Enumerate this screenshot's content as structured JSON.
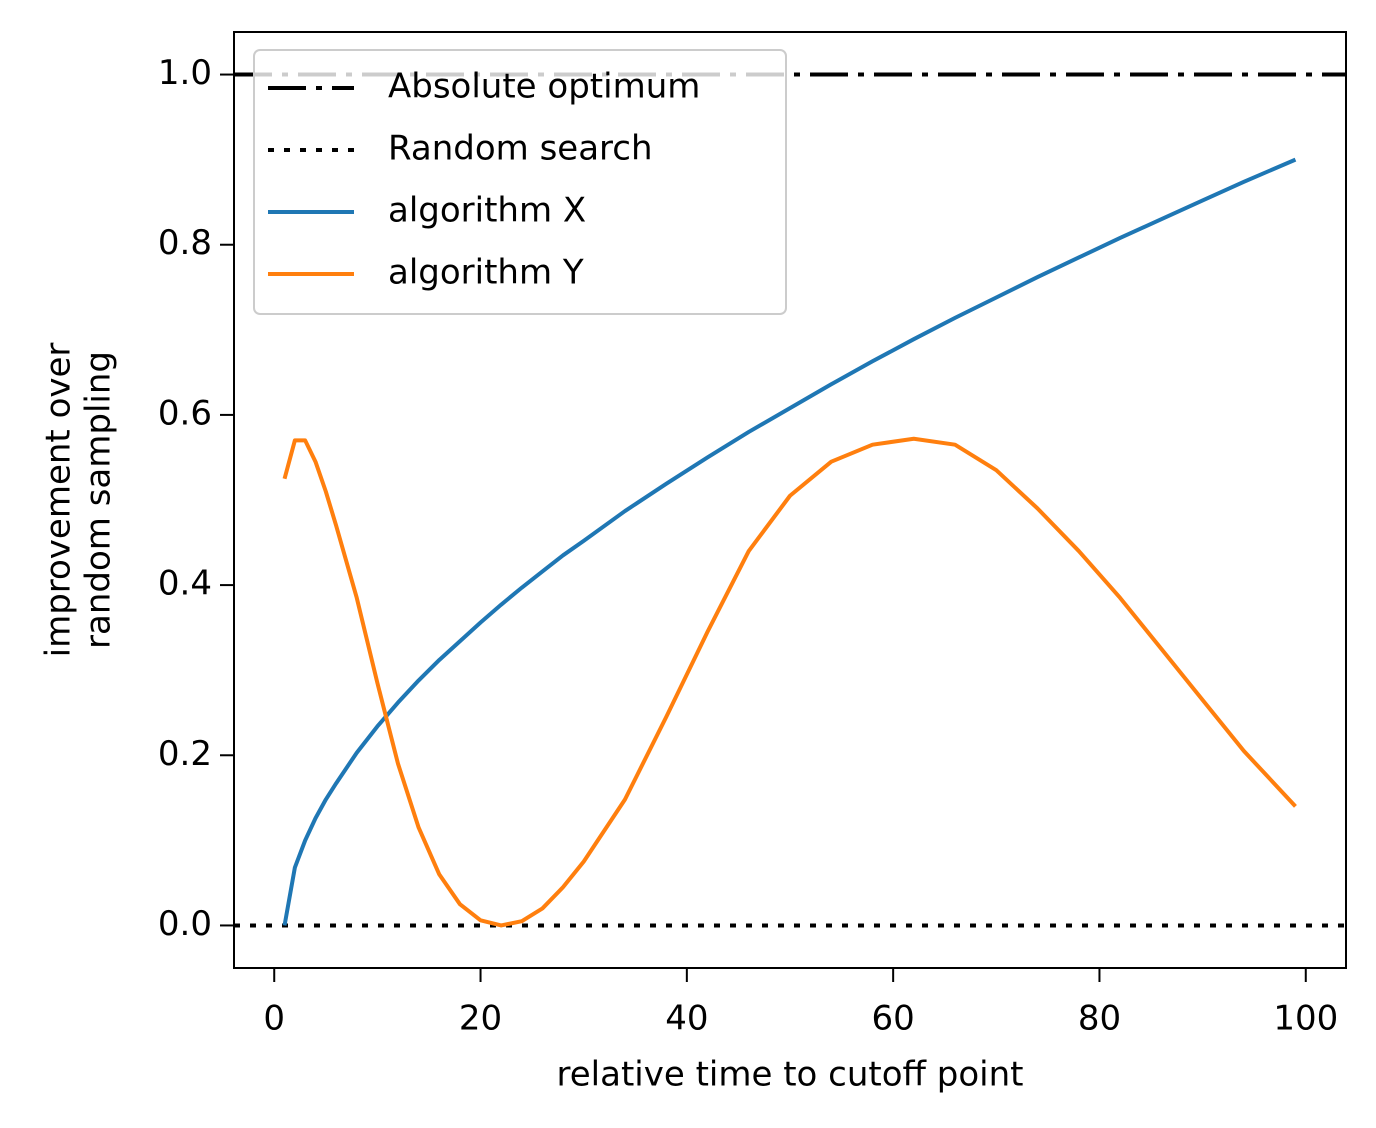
{
  "chart_data": {
    "type": "line",
    "xlabel": "relative time to cutoff point",
    "ylabel": [
      "improvement over",
      "random sampling"
    ],
    "x": [
      1,
      2,
      3,
      4,
      5,
      6,
      8,
      10,
      12,
      14,
      16,
      18,
      20,
      22,
      24,
      26,
      28,
      30,
      34,
      38,
      42,
      46,
      50,
      54,
      58,
      62,
      66,
      70,
      74,
      78,
      82,
      86,
      90,
      94,
      99
    ],
    "series": [
      {
        "name": "Absolute optimum",
        "color": "#000000",
        "dash": "dashdot",
        "level": 1.0
      },
      {
        "name": "Random search",
        "color": "#000000",
        "dash": "dotted",
        "level": 0.0
      },
      {
        "name": "algorithm X",
        "color": "#1f77b4",
        "values": [
          0,
          0.068,
          0.1,
          0.126,
          0.148,
          0.167,
          0.203,
          0.234,
          0.262,
          0.288,
          0.312,
          0.334,
          0.356,
          0.377,
          0.397,
          0.416,
          0.435,
          0.452,
          0.487,
          0.519,
          0.55,
          0.58,
          0.608,
          0.636,
          0.663,
          0.689,
          0.714,
          0.738,
          0.762,
          0.785,
          0.808,
          0.83,
          0.852,
          0.874,
          0.9
        ]
      },
      {
        "name": "algorithm Y",
        "color": "#ff7f0e",
        "values": [
          0.525,
          0.57,
          0.57,
          0.545,
          0.51,
          0.47,
          0.385,
          0.285,
          0.19,
          0.115,
          0.06,
          0.025,
          0.006,
          0,
          0.005,
          0.02,
          0.045,
          0.075,
          0.148,
          0.245,
          0.345,
          0.44,
          0.505,
          0.545,
          0.565,
          0.572,
          0.565,
          0.535,
          0.49,
          0.44,
          0.385,
          0.325,
          0.265,
          0.205,
          0.14
        ]
      }
    ],
    "xlim": [
      -3.9,
      103.9
    ],
    "ylim": [
      -0.05,
      1.05
    ],
    "xticks": [
      0,
      20,
      40,
      60,
      80,
      100
    ],
    "yticks": [
      {
        "value": 0,
        "label": "0.0"
      },
      0.2,
      0.4,
      0.6,
      0.8,
      {
        "value": 1,
        "label": "1.0"
      }
    ],
    "legend": "upper left"
  }
}
